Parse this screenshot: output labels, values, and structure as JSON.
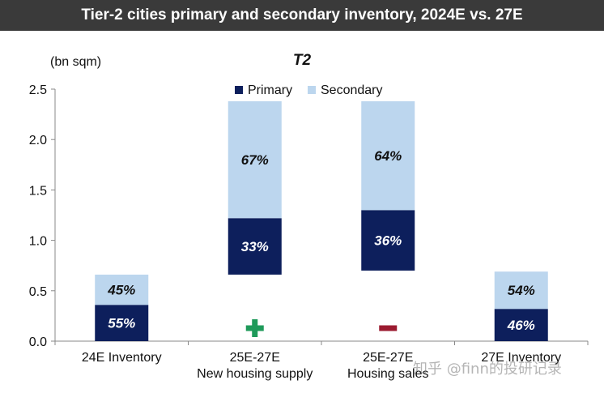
{
  "header": {
    "title": "Tier-2 cities  primary and secondary inventory, 2024E vs. 27E"
  },
  "watermark": "知乎 @finn的投研记录",
  "chart_data": {
    "type": "bar",
    "stacked": true,
    "waterfall": true,
    "title": "T2",
    "ylabel": "(bn sqm)",
    "ylim": [
      0,
      2.5
    ],
    "yticks": [
      "0.0",
      "0.5",
      "1.0",
      "1.5",
      "2.0",
      "2.5"
    ],
    "grid": false,
    "legend": {
      "position": "top",
      "entries": [
        "Primary",
        "Secondary"
      ]
    },
    "colors": {
      "primary": "#0d1f5c",
      "secondary": "#bcd6ee",
      "plus": "#1f9a5a",
      "minus": "#9b1b30"
    },
    "categories": [
      [
        "24E Inventory"
      ],
      [
        "25E-27E",
        "New housing supply"
      ],
      [
        "25E-27E",
        "Housing sales"
      ],
      [
        "27E Inventory"
      ]
    ],
    "series": [
      {
        "name": "Primary",
        "base": [
          0,
          0.66,
          0.7,
          0
        ],
        "values": [
          0.36,
          0.56,
          0.6,
          0.32
        ],
        "labels": [
          "55%",
          "33%",
          "36%",
          "46%"
        ]
      },
      {
        "name": "Secondary",
        "values": [
          0.3,
          1.16,
          1.08,
          0.37
        ],
        "labels": [
          "45%",
          "67%",
          "64%",
          "54%"
        ]
      }
    ],
    "markers": [
      "",
      "+",
      "−",
      ""
    ]
  }
}
